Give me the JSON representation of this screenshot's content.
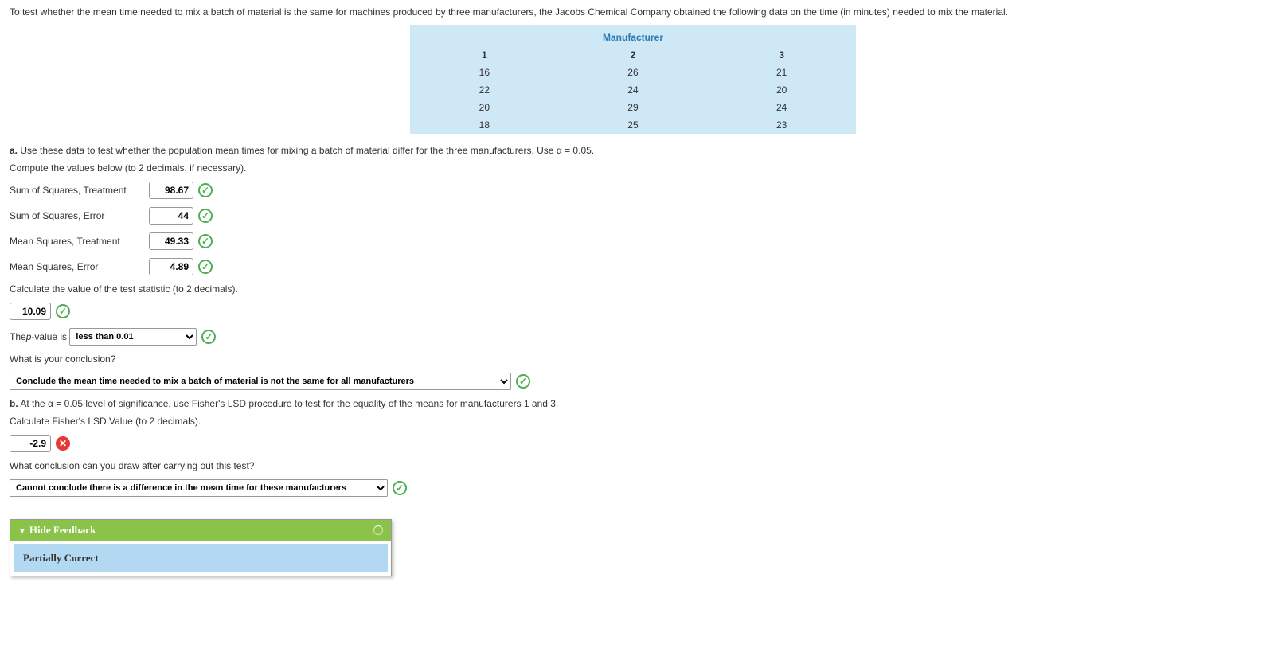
{
  "intro": "To test whether the mean time needed to mix a batch of material is the same for machines produced by three manufacturers, the Jacobs Chemical Company obtained the following data on the time (in minutes) needed to mix the material.",
  "table": {
    "title": "Manufacturer",
    "cols": [
      "1",
      "2",
      "3"
    ],
    "rows": [
      [
        "16",
        "26",
        "21"
      ],
      [
        "22",
        "24",
        "20"
      ],
      [
        "20",
        "29",
        "24"
      ],
      [
        "18",
        "25",
        "23"
      ]
    ]
  },
  "partA": {
    "label": "a.",
    "text": "Use these data to test whether the population mean times for mixing a batch of material differ for the three manufacturers. Use α = 0.05.",
    "compute": "Compute the values below (to 2 decimals, if necessary).",
    "fields": {
      "sst": {
        "label": "Sum of Squares, Treatment",
        "value": "98.67",
        "correct": true
      },
      "sse": {
        "label": "Sum of Squares, Error",
        "value": "44",
        "correct": true
      },
      "mst": {
        "label": "Mean Squares, Treatment",
        "value": "49.33",
        "correct": true
      },
      "mse": {
        "label": "Mean Squares, Error",
        "value": "4.89",
        "correct": true
      }
    },
    "testStatLabel": "Calculate the value of the test statistic (to 2 decimals).",
    "testStat": {
      "value": "10.09",
      "correct": true
    },
    "pvaluePrefix": "The ",
    "pvalueItalic": "p",
    "pvalueSuffix": "-value is",
    "pvalueSelected": "less than 0.01",
    "pvalueCorrect": true,
    "conclusionQ": "What is your conclusion?",
    "conclusionSelected": "Conclude the mean time needed to mix a batch of material is not the same for all manufacturers",
    "conclusionCorrect": true
  },
  "partB": {
    "label": "b.",
    "text": "At the α = 0.05 level of significance, use Fisher's LSD procedure to test for the equality of the means for manufacturers 1 and 3.",
    "lsdLabel": "Calculate Fisher's LSD Value (to 2 decimals).",
    "lsd": {
      "value": "-2.9",
      "correct": false
    },
    "conclQ": "What conclusion can you draw after carrying out this test?",
    "conclSelected": "Cannot conclude there is a difference in the mean time for these manufacturers",
    "conclCorrect": true
  },
  "feedback": {
    "toggle": "Hide Feedback",
    "status": "Partially Correct"
  }
}
